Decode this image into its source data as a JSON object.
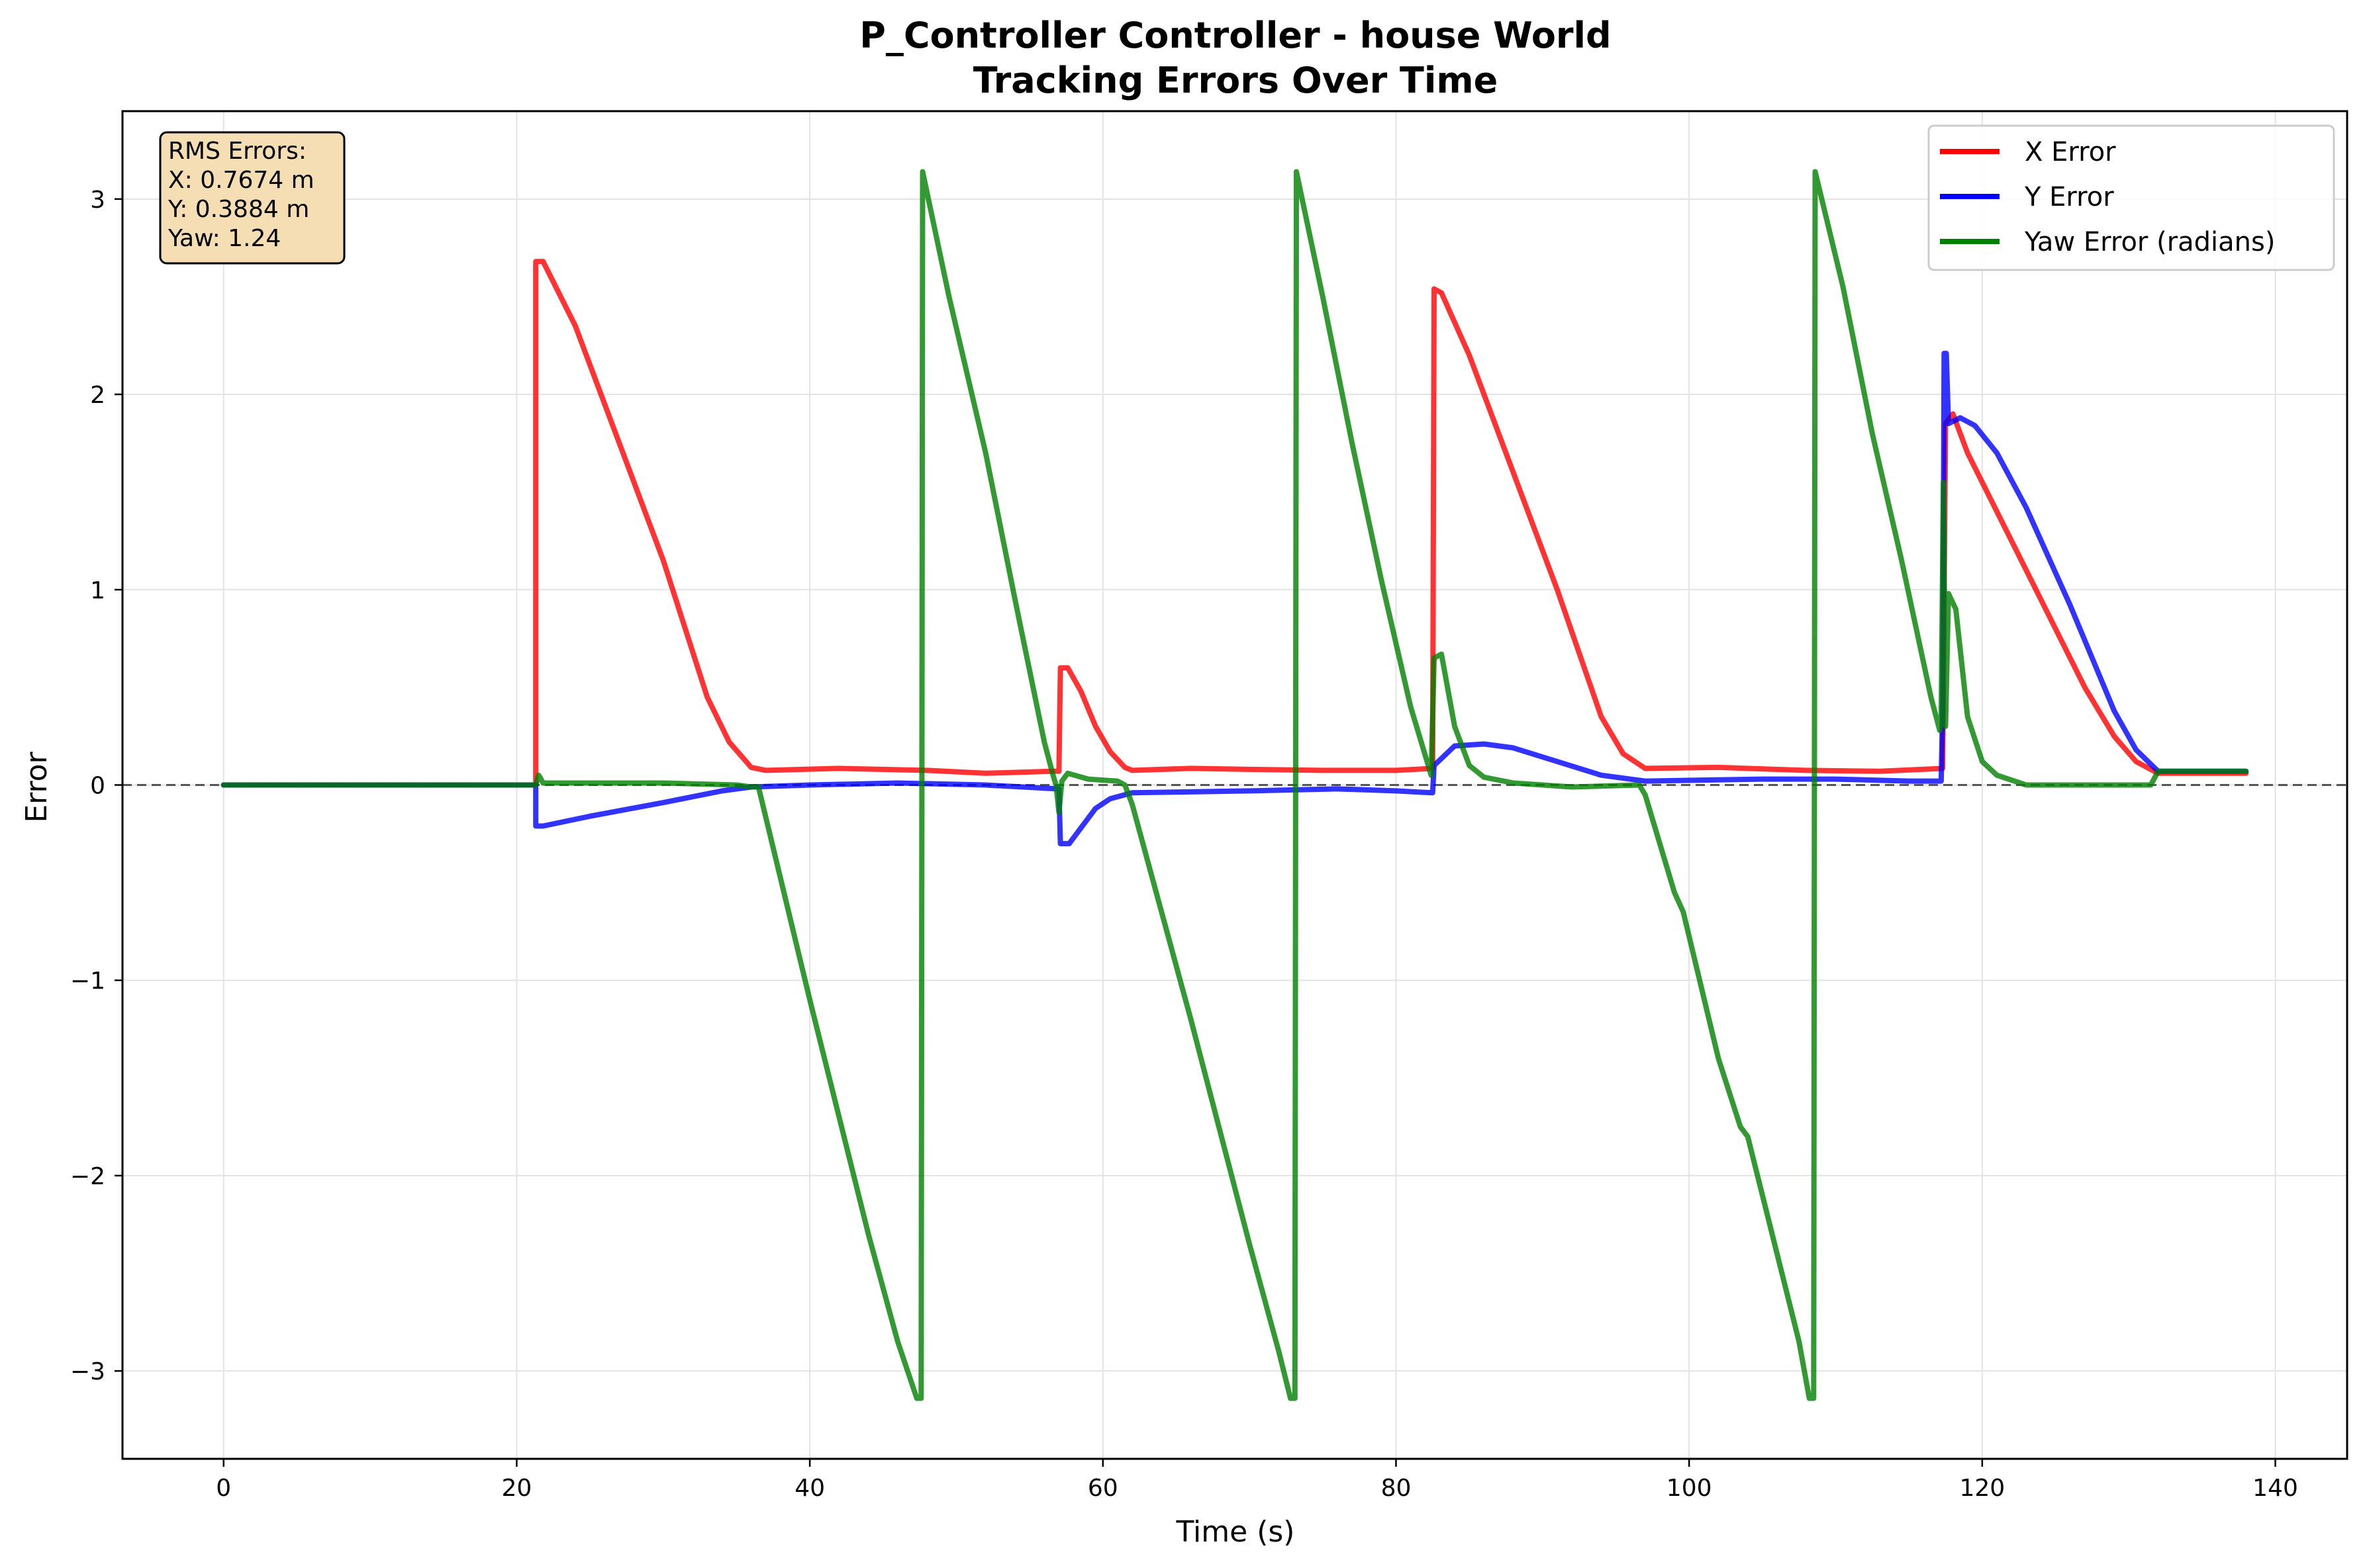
{
  "chart_data": {
    "type": "line",
    "title": "P_Controller Controller - house World",
    "subtitle": "Tracking Errors Over Time",
    "xlabel": "Time (s)",
    "ylabel": "Error",
    "xlim": [
      -6.9,
      144.9
    ],
    "ylim": [
      -3.45,
      3.45
    ],
    "xticks": [
      0,
      20,
      40,
      60,
      80,
      100,
      120,
      140
    ],
    "yticks": [
      -3,
      -2,
      -1,
      0,
      1,
      2,
      3
    ],
    "xtick_labels": [
      "0",
      "20",
      "40",
      "60",
      "80",
      "100",
      "120",
      "140"
    ],
    "ytick_labels": [
      "−3",
      "−2",
      "−1",
      "0",
      "1",
      "2",
      "3"
    ],
    "grid": true,
    "zero_line": {
      "y": 0,
      "style": "dashed",
      "color": "#555555"
    },
    "legend_position": "top-right",
    "rms_box": {
      "position": "top-left",
      "lines": [
        "RMS Errors:",
        "X: 0.7674 m",
        "Y: 0.3884 m",
        "Yaw: 1.24"
      ],
      "background": "#f5deb3"
    },
    "series": [
      {
        "name": "X Error",
        "color": "#ff0000",
        "points": [
          [
            0,
            0
          ],
          [
            21.3,
            0
          ],
          [
            21.3,
            2.68
          ],
          [
            21.8,
            2.68
          ],
          [
            24,
            2.35
          ],
          [
            27,
            1.75
          ],
          [
            30,
            1.15
          ],
          [
            33,
            0.45
          ],
          [
            34.5,
            0.22
          ],
          [
            36,
            0.09
          ],
          [
            37,
            0.075
          ],
          [
            42,
            0.085
          ],
          [
            48,
            0.075
          ],
          [
            52,
            0.06
          ],
          [
            56.5,
            0.07
          ],
          [
            57,
            0.07
          ],
          [
            57.1,
            0.6
          ],
          [
            57.6,
            0.6
          ],
          [
            58.5,
            0.48
          ],
          [
            59.5,
            0.3
          ],
          [
            60.5,
            0.17
          ],
          [
            61.5,
            0.09
          ],
          [
            62,
            0.075
          ],
          [
            66,
            0.085
          ],
          [
            70,
            0.08
          ],
          [
            75,
            0.075
          ],
          [
            80,
            0.075
          ],
          [
            82.5,
            0.085
          ],
          [
            82.6,
            2.54
          ],
          [
            83.1,
            2.52
          ],
          [
            85,
            2.2
          ],
          [
            88,
            1.6
          ],
          [
            91,
            1.0
          ],
          [
            94,
            0.35
          ],
          [
            95.5,
            0.16
          ],
          [
            97,
            0.085
          ],
          [
            102,
            0.09
          ],
          [
            108,
            0.075
          ],
          [
            113,
            0.07
          ],
          [
            117.3,
            0.085
          ],
          [
            117.35,
            0.55
          ],
          [
            117.5,
            1.85
          ],
          [
            118,
            1.9
          ],
          [
            119,
            1.7
          ],
          [
            121,
            1.4
          ],
          [
            124,
            0.95
          ],
          [
            127,
            0.5
          ],
          [
            129,
            0.25
          ],
          [
            130.5,
            0.12
          ],
          [
            132,
            0.06
          ],
          [
            138,
            0.06
          ]
        ]
      },
      {
        "name": "Y Error",
        "color": "#0000ff",
        "points": [
          [
            0,
            0
          ],
          [
            21.3,
            0
          ],
          [
            21.3,
            -0.21
          ],
          [
            21.8,
            -0.21
          ],
          [
            25,
            -0.16
          ],
          [
            30,
            -0.09
          ],
          [
            34,
            -0.03
          ],
          [
            36,
            -0.01
          ],
          [
            40,
            0
          ],
          [
            46,
            0.01
          ],
          [
            52,
            0.0
          ],
          [
            56.9,
            -0.02
          ],
          [
            57,
            -0.02
          ],
          [
            57.1,
            -0.3
          ],
          [
            57.7,
            -0.3
          ],
          [
            58.5,
            -0.22
          ],
          [
            59.5,
            -0.12
          ],
          [
            60.5,
            -0.07
          ],
          [
            62,
            -0.04
          ],
          [
            70,
            -0.03
          ],
          [
            76,
            -0.02
          ],
          [
            80,
            -0.03
          ],
          [
            82.5,
            -0.04
          ],
          [
            82.6,
            0.1
          ],
          [
            84,
            0.2
          ],
          [
            86,
            0.21
          ],
          [
            88,
            0.19
          ],
          [
            91,
            0.12
          ],
          [
            94,
            0.05
          ],
          [
            97,
            0.02
          ],
          [
            105,
            0.03
          ],
          [
            110,
            0.03
          ],
          [
            115,
            0.02
          ],
          [
            117.2,
            0.02
          ],
          [
            117.3,
            0.4
          ],
          [
            117.4,
            2.21
          ],
          [
            117.55,
            2.21
          ],
          [
            117.7,
            1.85
          ],
          [
            118.5,
            1.88
          ],
          [
            119.5,
            1.84
          ],
          [
            121,
            1.7
          ],
          [
            123,
            1.42
          ],
          [
            126,
            0.92
          ],
          [
            129,
            0.38
          ],
          [
            130.5,
            0.18
          ],
          [
            132,
            0.07
          ],
          [
            138,
            0.07
          ]
        ]
      },
      {
        "name": "Yaw Error (radians)",
        "color": "#008000",
        "points": [
          [
            0,
            0
          ],
          [
            21.3,
            0
          ],
          [
            21.5,
            0.05
          ],
          [
            21.8,
            0.01
          ],
          [
            25,
            0.01
          ],
          [
            30,
            0.01
          ],
          [
            35,
            0.0
          ],
          [
            36,
            -0.01
          ],
          [
            36.5,
            -0.01
          ],
          [
            40,
            -1.1
          ],
          [
            44,
            -2.3
          ],
          [
            46,
            -2.85
          ],
          [
            47.3,
            -3.14
          ],
          [
            47.6,
            -3.14
          ],
          [
            47.7,
            3.14
          ],
          [
            49.5,
            2.5
          ],
          [
            52,
            1.7
          ],
          [
            54,
            0.95
          ],
          [
            56,
            0.22
          ],
          [
            56.6,
            0.05
          ],
          [
            56.8,
            0.0
          ],
          [
            57,
            -0.14
          ],
          [
            57.2,
            0.02
          ],
          [
            57.6,
            0.06
          ],
          [
            59,
            0.03
          ],
          [
            61,
            0.02
          ],
          [
            61.5,
            0.0
          ],
          [
            62,
            -0.1
          ],
          [
            66,
            -1.2
          ],
          [
            70,
            -2.35
          ],
          [
            72,
            -2.9
          ],
          [
            72.8,
            -3.14
          ],
          [
            73.1,
            -3.14
          ],
          [
            73.2,
            3.14
          ],
          [
            75,
            2.5
          ],
          [
            77,
            1.75
          ],
          [
            79,
            1.05
          ],
          [
            81,
            0.4
          ],
          [
            82.2,
            0.1
          ],
          [
            82.4,
            0.05
          ],
          [
            82.6,
            0.65
          ],
          [
            83.1,
            0.67
          ],
          [
            84,
            0.3
          ],
          [
            85,
            0.1
          ],
          [
            86,
            0.04
          ],
          [
            88,
            0.01
          ],
          [
            92,
            -0.01
          ],
          [
            96.6,
            0.0
          ],
          [
            97,
            -0.05
          ],
          [
            99,
            -0.55
          ],
          [
            99.6,
            -0.65
          ],
          [
            102,
            -1.4
          ],
          [
            103.5,
            -1.75
          ],
          [
            104,
            -1.8
          ],
          [
            106,
            -2.4
          ],
          [
            107.5,
            -2.85
          ],
          [
            108.2,
            -3.14
          ],
          [
            108.5,
            -3.14
          ],
          [
            108.6,
            3.14
          ],
          [
            110.5,
            2.55
          ],
          [
            112.5,
            1.8
          ],
          [
            114.5,
            1.15
          ],
          [
            116.5,
            0.45
          ],
          [
            117.1,
            0.28
          ],
          [
            117.2,
            0.35
          ],
          [
            117.35,
            1.55
          ],
          [
            117.5,
            0.3
          ],
          [
            117.7,
            0.98
          ],
          [
            118.2,
            0.9
          ],
          [
            119,
            0.35
          ],
          [
            120,
            0.12
          ],
          [
            121,
            0.05
          ],
          [
            123,
            0.0
          ],
          [
            127,
            0.0
          ],
          [
            131.5,
            0.0
          ],
          [
            132,
            0.07
          ],
          [
            138,
            0.07
          ]
        ]
      }
    ]
  }
}
